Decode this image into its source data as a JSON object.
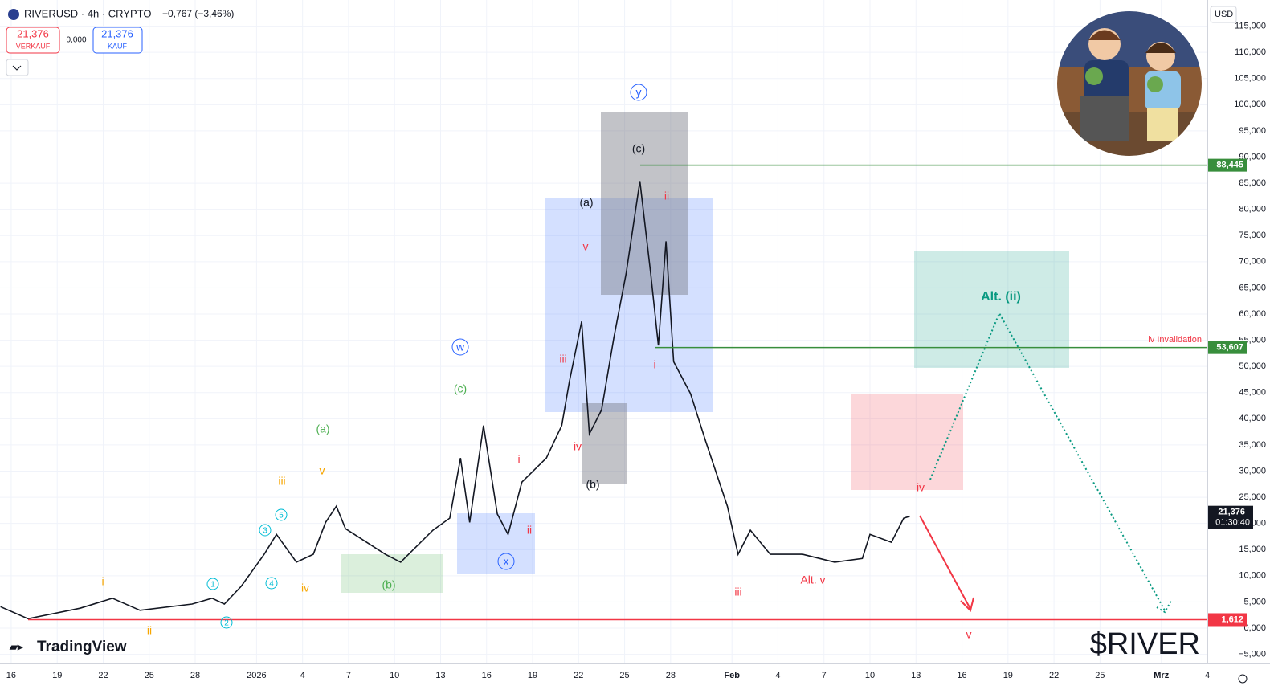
{
  "header": {
    "symbol": "RIVERUSD · 4h · CRYPTO",
    "change": "−0,767 (−3,46%)",
    "sell_price": "21,376",
    "sell_label": "VERKAUF",
    "spread": "0,000",
    "buy_price": "21,376",
    "buy_label": "KAUF"
  },
  "chart_data": {
    "type": "line",
    "color": "#131722",
    "currency": "USD",
    "x": [
      -0.7,
      1.1,
      4.5,
      6.6,
      8.4,
      11.8,
      13.1,
      13.9,
      15,
      16.5,
      17.3,
      18.6,
      19.7,
      20.5,
      21.2,
      21.8,
      24.4,
      25.4,
      27.5,
      28.6,
      29.3,
      29.9,
      30.8,
      31.7,
      32.4,
      33.3,
      34.9,
      35.9,
      36.4,
      37.2,
      37.7,
      38.5,
      39.3,
      40.1,
      41,
      41.7,
      42.2,
      42.7,
      43.2,
      44.3,
      45.3,
      46.7,
      47.4,
      48.2,
      49.5,
      51.6,
      53.7,
      55.5,
      56,
      57.4,
      58.2,
      58.6
    ],
    "values": [
      4100,
      1800,
      3800,
      5700,
      3400,
      4600,
      5700,
      4600,
      8000,
      14100,
      17900,
      12600,
      14100,
      20200,
      23300,
      19000,
      14100,
      12600,
      18700,
      21000,
      32500,
      20200,
      38700,
      21800,
      17900,
      27900,
      32500,
      38700,
      47100,
      58600,
      37100,
      41700,
      55500,
      67800,
      85400,
      67800,
      54000,
      73900,
      50900,
      44800,
      35600,
      23300,
      14100,
      18700,
      14100,
      14100,
      12600,
      13300,
      17900,
      16400,
      21000,
      21376
    ],
    "xlim": [
      -0.73,
      78
    ],
    "xticks": [
      {
        "value": 0,
        "label": "16"
      },
      {
        "value": 3,
        "label": "19"
      },
      {
        "value": 6,
        "label": "22"
      },
      {
        "value": 9,
        "label": "25"
      },
      {
        "value": 12,
        "label": "28"
      },
      {
        "value": 16,
        "label": "2026"
      },
      {
        "value": 19,
        "label": "4"
      },
      {
        "value": 22,
        "label": "7"
      },
      {
        "value": 25,
        "label": "10"
      },
      {
        "value": 28,
        "label": "13"
      },
      {
        "value": 31,
        "label": "16"
      },
      {
        "value": 34,
        "label": "19"
      },
      {
        "value": 37,
        "label": "22"
      },
      {
        "value": 40,
        "label": "25"
      },
      {
        "value": 43,
        "label": "28"
      },
      {
        "value": 47,
        "label": "Feb"
      },
      {
        "value": 50,
        "label": "4"
      },
      {
        "value": 53,
        "label": "7"
      },
      {
        "value": 56,
        "label": "10"
      },
      {
        "value": 59,
        "label": "13"
      },
      {
        "value": 62,
        "label": "16"
      },
      {
        "value": 65,
        "label": "19"
      },
      {
        "value": 68,
        "label": "22"
      },
      {
        "value": 71,
        "label": "25"
      },
      {
        "value": 75,
        "label": "Mrz"
      },
      {
        "value": 78,
        "label": "4"
      }
    ],
    "ylim": [
      -6600,
      120000
    ],
    "yticks": [
      {
        "value": -5000,
        "label": "−5,000"
      },
      {
        "value": 0,
        "label": "0,000"
      },
      {
        "value": 5000,
        "label": "5,000"
      },
      {
        "value": 10000,
        "label": "10,000"
      },
      {
        "value": 15000,
        "label": "15,000"
      },
      {
        "value": 20000,
        "label": "20,000"
      },
      {
        "value": 25000,
        "label": "25,000"
      },
      {
        "value": 30000,
        "label": "30,000"
      },
      {
        "value": 35000,
        "label": "35,000"
      },
      {
        "value": 40000,
        "label": "40,000"
      },
      {
        "value": 45000,
        "label": "45,000"
      },
      {
        "value": 50000,
        "label": "50,000"
      },
      {
        "value": 55000,
        "label": "55,000"
      },
      {
        "value": 60000,
        "label": "60,000"
      },
      {
        "value": 65000,
        "label": "65,000"
      },
      {
        "value": 70000,
        "label": "70,000"
      },
      {
        "value": 75000,
        "label": "75,000"
      },
      {
        "value": 80000,
        "label": "80,000"
      },
      {
        "value": 85000,
        "label": "85,000"
      },
      {
        "value": 90000,
        "label": "90,000"
      },
      {
        "value": 95000,
        "label": "95,000"
      },
      {
        "value": 100000,
        "label": "100,000"
      },
      {
        "value": 105000,
        "label": "105,000"
      },
      {
        "value": 110000,
        "label": "110,000"
      },
      {
        "value": 115000,
        "label": "115,000"
      }
    ],
    "price_lines": [
      {
        "value": 88445,
        "label": "88,445",
        "color": "#388e3c"
      },
      {
        "value": 53607,
        "label": "53,607",
        "color": "#388e3c"
      },
      {
        "value": 1612,
        "label": "1,612",
        "color": "#f23645"
      }
    ],
    "last_price": {
      "value": 21376,
      "label": "21,376"
    },
    "countdown": "01:30:40",
    "invalidation": "iv Invalidation",
    "annotations": [
      "y",
      "(c)",
      "(a)",
      "ii",
      "v",
      "iii",
      "i",
      "iv",
      "(b)",
      "w",
      "(c)",
      "(a)",
      "v",
      "iii",
      "5",
      "3",
      "4",
      "1",
      "2",
      "iv",
      "i",
      "ii",
      "(b)",
      "x",
      "i",
      "ii",
      "iii",
      "Alt. v",
      "iv",
      "v",
      "Alt. (ii)"
    ],
    "brand": "TradingView",
    "watermark": "$RIVER"
  }
}
